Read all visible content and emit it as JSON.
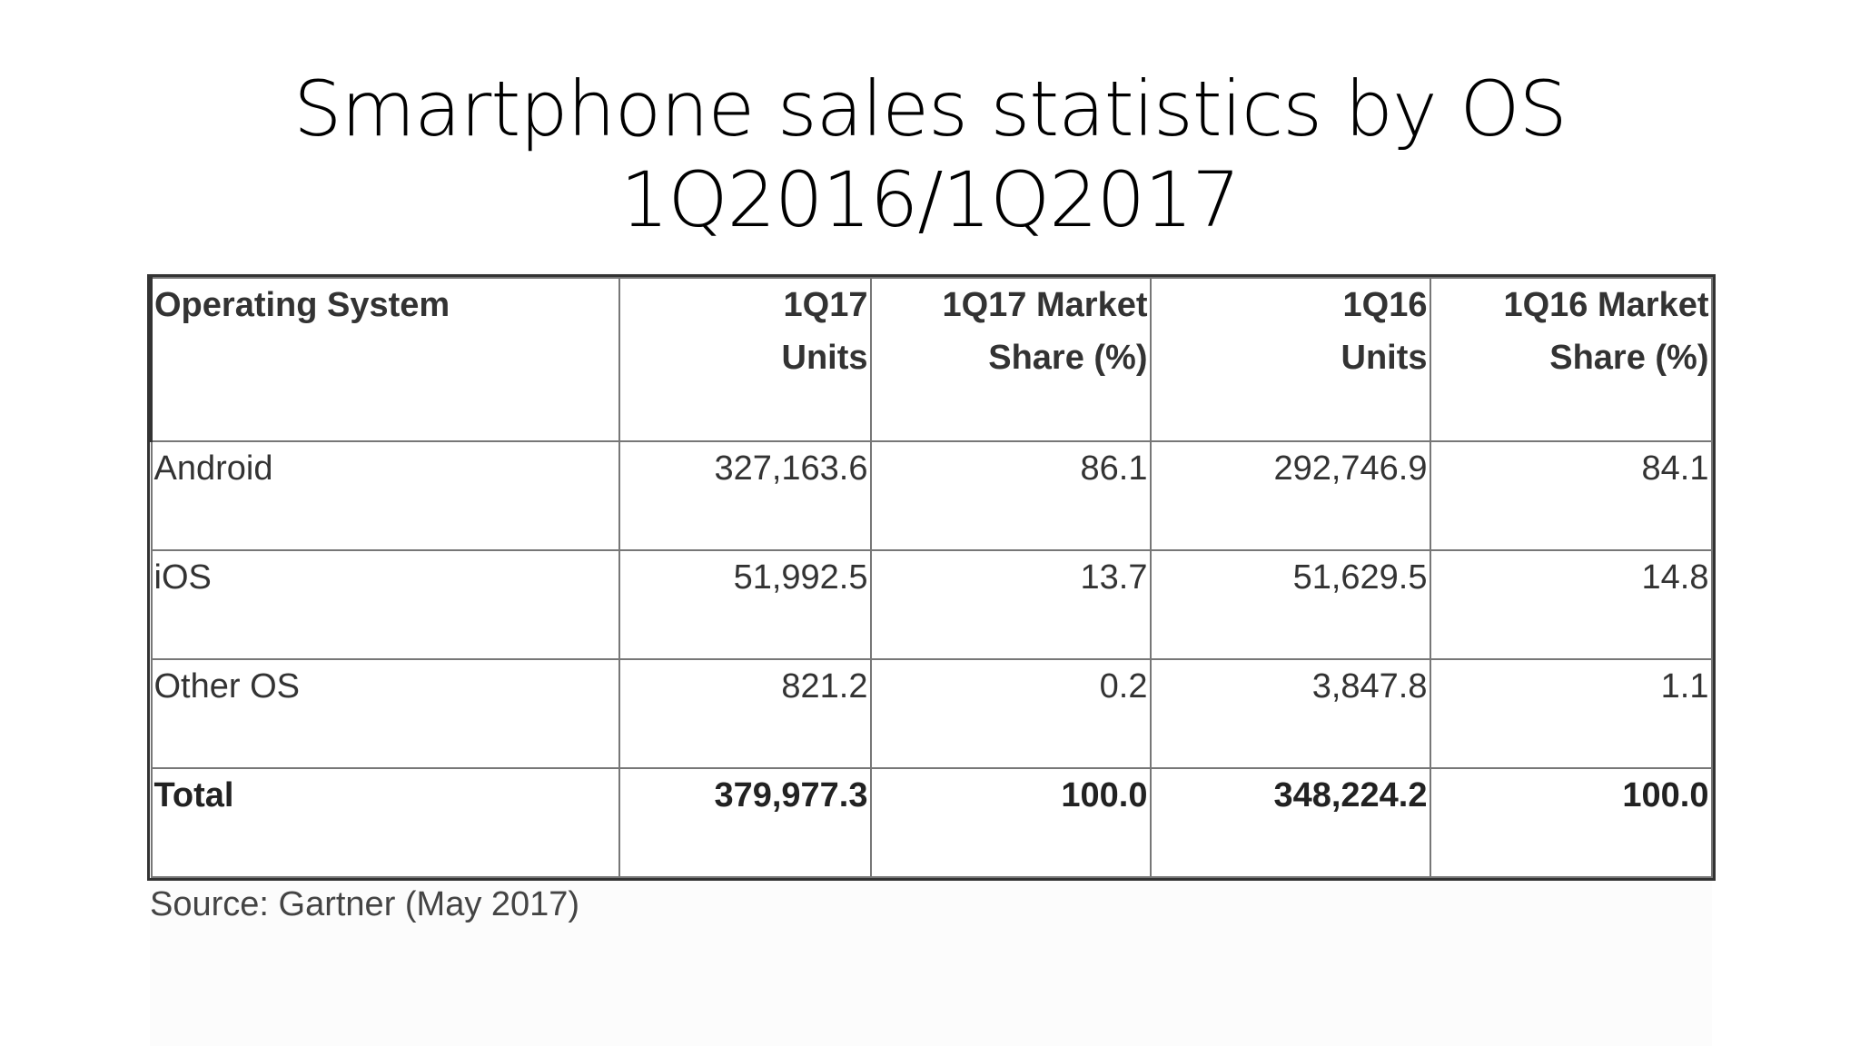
{
  "title": {
    "line1": "Smartphone sales statistics by OS",
    "line2": "1Q2016/1Q2017"
  },
  "chart_data": {
    "type": "table",
    "columns": [
      "Operating System",
      "1Q17 Units",
      "1Q17 Market Share (%)",
      "1Q16 Units",
      "1Q16 Market Share (%)"
    ],
    "header": {
      "os": "Operating System",
      "q17_units_1": "1Q17",
      "q17_units_2": "Units",
      "q17_share_1": "1Q17 Market",
      "q17_share_2": "Share (%)",
      "q16_units_1": "1Q16",
      "q16_units_2": "Units",
      "q16_share_1": "1Q16 Market",
      "q16_share_2": "Share (%)"
    },
    "rows": [
      {
        "os": "Android",
        "q17_units": "327,163.6",
        "q17_share": "86.1",
        "q16_units": "292,746.9",
        "q16_share": "84.1"
      },
      {
        "os": "iOS",
        "q17_units": "51,992.5",
        "q17_share": "13.7",
        "q16_units": "51,629.5",
        "q16_share": "14.8"
      },
      {
        "os": "Other OS",
        "q17_units": "821.2",
        "q17_share": "0.2",
        "q16_units": "3,847.8",
        "q16_share": "1.1"
      }
    ],
    "total": {
      "os": "Total",
      "q17_units": "379,977.3",
      "q17_share": "100.0",
      "q16_units": "348,224.2",
      "q16_share": "100.0"
    }
  },
  "source": "Source: Gartner (May 2017)"
}
